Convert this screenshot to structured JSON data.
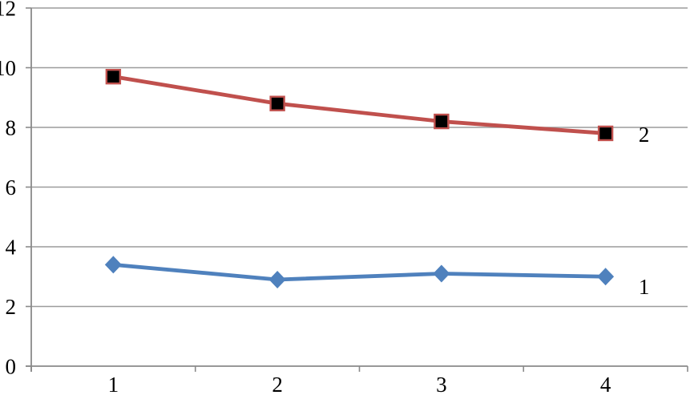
{
  "chart_data": {
    "type": "line",
    "title": "",
    "xlabel": "",
    "ylabel": "",
    "categories": [
      "1",
      "2",
      "3",
      "4"
    ],
    "series": [
      {
        "name": "1",
        "end_label": "1",
        "values": [
          3.4,
          2.9,
          3.1,
          3.0
        ],
        "color": "#4F81BD",
        "marker": "diamond",
        "marker_fill": "#4F81BD"
      },
      {
        "name": "2",
        "end_label": "2",
        "values": [
          9.7,
          8.8,
          8.2,
          7.8
        ],
        "color": "#C0504D",
        "marker": "square",
        "marker_fill": "#000000"
      }
    ],
    "ylim": [
      0,
      12
    ],
    "yticks": [
      0,
      2,
      4,
      6,
      8,
      10,
      12
    ],
    "grid": true,
    "legend_position": "line-end-labels",
    "colors": {
      "grid": "#9C9C9C",
      "axis": "#8A8A8A",
      "text": "#000000",
      "background": "#FFFFFF"
    }
  }
}
